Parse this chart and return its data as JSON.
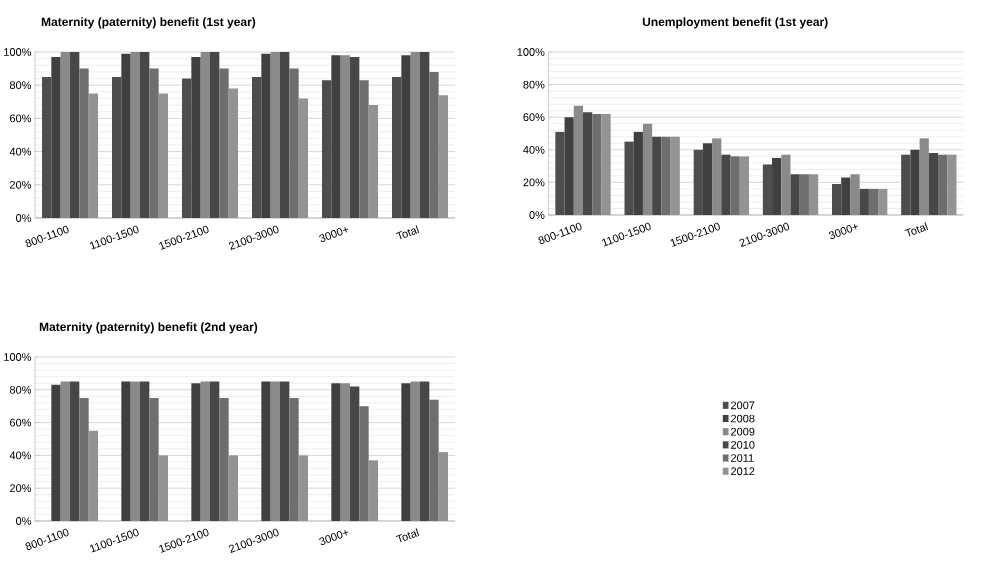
{
  "chart_data": [
    {
      "type": "bar",
      "title": "Maternity (paternity) benefit (1st year)",
      "categories": [
        "800-1100",
        "1100-1500",
        "1500-2100",
        "2100-3000",
        "3000+",
        "Total"
      ],
      "series": [
        {
          "color": "#4d4d4d",
          "values": [
            85,
            85,
            84,
            85,
            83,
            85
          ]
        },
        {
          "color": "#404040",
          "values": [
            97,
            99,
            97,
            99,
            98,
            98
          ]
        },
        {
          "color": "#8a8a8a",
          "values": [
            100,
            100,
            100,
            100,
            98,
            100
          ]
        },
        {
          "color": "#474747",
          "values": [
            100,
            100,
            100,
            100,
            97,
            100
          ]
        },
        {
          "color": "#6e6e6e",
          "values": [
            90,
            90,
            90,
            90,
            83,
            88
          ]
        },
        {
          "color": "#939393",
          "values": [
            75,
            75,
            78,
            72,
            68,
            74
          ]
        }
      ],
      "ylim": [
        0,
        100
      ],
      "yticks": [
        {
          "value": 0,
          "label": "0%"
        },
        {
          "value": 20,
          "label": "20%"
        },
        {
          "value": 40,
          "label": "40%"
        },
        {
          "value": 60,
          "label": "60%"
        },
        {
          "value": 80,
          "label": "80%"
        },
        {
          "value": 100,
          "label": "100%"
        }
      ],
      "grid": "y"
    },
    {
      "type": "bar",
      "title": "Unemployment benefit (1st year)",
      "categories": [
        "800-1100",
        "1100-1500",
        "1500-2100",
        "2100-3000",
        "3000+",
        "Total"
      ],
      "series": [
        {
          "color": "#4d4d4d",
          "values": [
            51,
            45,
            40,
            31,
            19,
            37
          ]
        },
        {
          "color": "#404040",
          "values": [
            60,
            51,
            44,
            35,
            23,
            40
          ]
        },
        {
          "color": "#8a8a8a",
          "values": [
            67,
            56,
            47,
            37,
            25,
            47
          ]
        },
        {
          "color": "#474747",
          "values": [
            63,
            48,
            37,
            25,
            16,
            38
          ]
        },
        {
          "color": "#6e6e6e",
          "values": [
            62,
            48,
            36,
            25,
            16,
            37
          ]
        },
        {
          "color": "#939393",
          "values": [
            62,
            48,
            36,
            25,
            16,
            37
          ]
        }
      ],
      "ylim": [
        0,
        100
      ],
      "yticks": [
        {
          "value": 0,
          "label": "0%"
        },
        {
          "value": 20,
          "label": "20%"
        },
        {
          "value": 40,
          "label": "40%"
        },
        {
          "value": 60,
          "label": "60%"
        },
        {
          "value": 80,
          "label": "80%"
        },
        {
          "value": 100,
          "label": "100%"
        }
      ],
      "grid": "y"
    },
    {
      "type": "bar",
      "title": "Maternity (paternity) benefit (2nd year)",
      "categories": [
        "800-1100",
        "1100-1500",
        "1500-2100",
        "2100-3000",
        "3000+",
        "Total"
      ],
      "series": [
        {
          "name": "2007",
          "color": "#4d4d4d",
          "values": [
            null,
            null,
            null,
            null,
            null,
            null
          ]
        },
        {
          "name": "2008",
          "color": "#404040",
          "values": [
            83,
            85,
            84,
            85,
            84,
            84
          ]
        },
        {
          "name": "2009",
          "color": "#8a8a8a",
          "values": [
            85,
            85,
            85,
            85,
            84,
            85
          ]
        },
        {
          "name": "2010",
          "color": "#474747",
          "values": [
            85,
            85,
            85,
            85,
            82,
            85
          ]
        },
        {
          "name": "2011",
          "color": "#6e6e6e",
          "values": [
            75,
            75,
            75,
            75,
            70,
            74
          ]
        },
        {
          "name": "2012",
          "color": "#939393",
          "values": [
            55,
            40,
            40,
            40,
            37,
            42
          ]
        }
      ],
      "ylim": [
        0,
        100
      ],
      "yticks": [
        {
          "value": 0,
          "label": "0%"
        },
        {
          "value": 20,
          "label": "20%"
        },
        {
          "value": 40,
          "label": "40%"
        },
        {
          "value": 60,
          "label": "60%"
        },
        {
          "value": 80,
          "label": "80%"
        },
        {
          "value": 100,
          "label": "100%"
        }
      ],
      "grid": "y",
      "legend": "right"
    }
  ]
}
